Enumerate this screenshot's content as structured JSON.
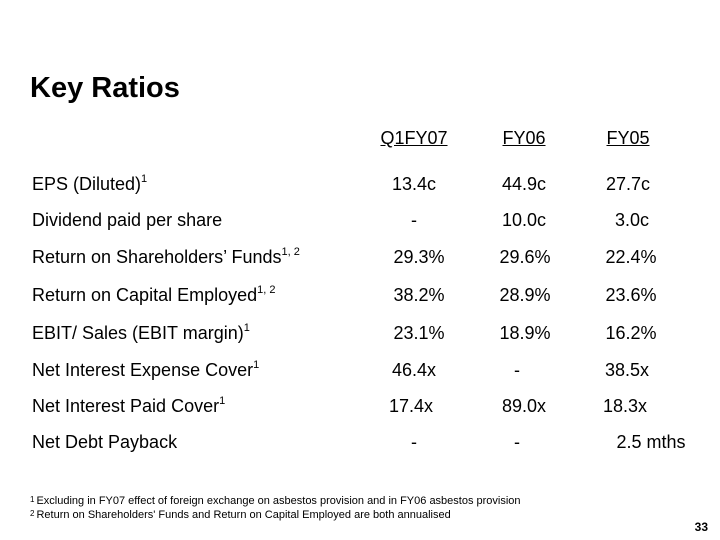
{
  "title": "Key Ratios",
  "columns": [
    "Q1FY07",
    "FY06",
    "FY05"
  ],
  "rows": [
    {
      "label": "EPS (Diluted)",
      "sup": "1",
      "values": [
        "13.4c",
        "44.9c",
        "27.7c"
      ]
    },
    {
      "label": "Dividend paid per share",
      "sup": "",
      "values": [
        "-",
        "10.0c",
        "3.0c"
      ]
    },
    {
      "label": "Return on Shareholders’ Funds",
      "sup": "1, 2",
      "values": [
        "29.3%",
        "29.6%",
        "22.4%"
      ]
    },
    {
      "label": "Return on Capital Employed",
      "sup": "1, 2",
      "values": [
        "38.2%",
        "28.9%",
        "23.6%"
      ]
    },
    {
      "label": "EBIT/ Sales (EBIT margin)",
      "sup": "1",
      "values": [
        "23.1%",
        "18.9%",
        "16.2%"
      ]
    },
    {
      "label": "Net Interest Expense Cover",
      "sup": "1",
      "values": [
        "46.4x",
        "-",
        "38.5x"
      ]
    },
    {
      "label": "Net Interest Paid Cover",
      "sup": "1",
      "values": [
        "17.4x",
        "89.0x",
        "18.3x"
      ]
    },
    {
      "label": "Net Debt Payback",
      "sup": "",
      "values": [
        "-",
        "-",
        "2.5 mths"
      ]
    }
  ],
  "footnotes": [
    {
      "mark": "1",
      "text": "Excluding in FY07 effect of foreign exchange on asbestos provision and in FY06 asbestos provision"
    },
    {
      "mark": "2",
      "text": "Return on Shareholders' Funds and Return on Capital Employed are both annualised"
    }
  ],
  "page_number": "33"
}
